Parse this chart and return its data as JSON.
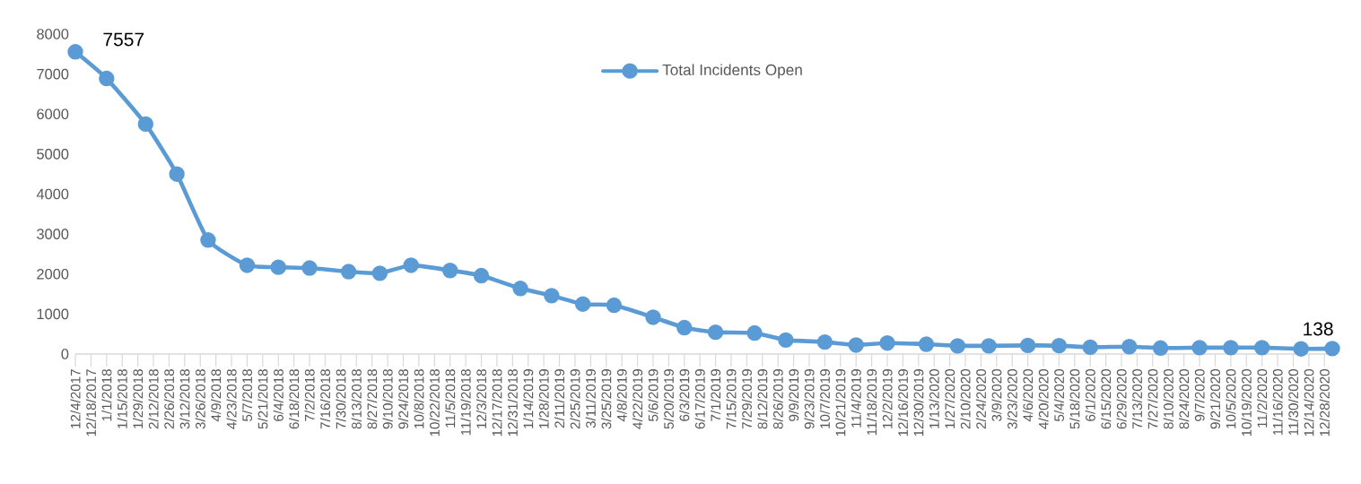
{
  "chart_data": {
    "type": "line",
    "x": [
      "2017-12-04",
      "2018-01-01",
      "2018-02-05",
      "2018-03-05",
      "2018-04-02",
      "2018-05-07",
      "2018-06-04",
      "2018-07-02",
      "2018-08-06",
      "2018-09-03",
      "2018-10-01",
      "2018-11-05",
      "2018-12-03",
      "2019-01-07",
      "2019-02-04",
      "2019-03-04",
      "2019-04-01",
      "2019-05-06",
      "2019-06-03",
      "2019-07-01",
      "2019-08-05",
      "2019-09-02",
      "2019-10-07",
      "2019-11-04",
      "2019-12-02",
      "2020-01-06",
      "2020-02-03",
      "2020-03-02",
      "2020-04-06",
      "2020-05-04",
      "2020-06-01",
      "2020-07-06",
      "2020-08-03",
      "2020-09-07",
      "2020-10-05",
      "2020-11-02",
      "2020-12-07",
      "2021-01-04"
    ],
    "series": [
      {
        "name": "Total Incidents Open",
        "color": "#5b9bd5",
        "values": [
          7557,
          6890,
          5750,
          4500,
          2850,
          2220,
          2170,
          2150,
          2060,
          2020,
          2220,
          2090,
          1960,
          1640,
          1460,
          1250,
          1220,
          920,
          660,
          545,
          525,
          350,
          300,
          225,
          275,
          245,
          205,
          205,
          215,
          210,
          170,
          185,
          150,
          160,
          160,
          160,
          130,
          138
        ],
        "value_labels": [
          "7557",
          null,
          null,
          null,
          null,
          null,
          null,
          null,
          null,
          null,
          null,
          null,
          null,
          null,
          null,
          null,
          null,
          null,
          null,
          null,
          null,
          null,
          null,
          null,
          null,
          null,
          null,
          null,
          null,
          null,
          null,
          null,
          null,
          null,
          null,
          null,
          null,
          "138"
        ]
      }
    ],
    "xlim": [
      "2017-12-04",
      "2021-01-04"
    ],
    "xticks": [
      {
        "value": "2017-12-04",
        "label": "12/4/2017"
      },
      {
        "value": "2017-12-18",
        "label": "12/18/2017"
      },
      {
        "value": "2018-01-01",
        "label": "1/1/2018"
      },
      {
        "value": "2018-01-15",
        "label": "1/15/2018"
      },
      {
        "value": "2018-01-29",
        "label": "1/29/2018"
      },
      {
        "value": "2018-02-12",
        "label": "2/12/2018"
      },
      {
        "value": "2018-02-26",
        "label": "2/26/2018"
      },
      {
        "value": "2018-03-12",
        "label": "3/12/2018"
      },
      {
        "value": "2018-03-26",
        "label": "3/26/2018"
      },
      {
        "value": "2018-04-09",
        "label": "4/9/2018"
      },
      {
        "value": "2018-04-23",
        "label": "4/23/2018"
      },
      {
        "value": "2018-05-07",
        "label": "5/7/2018"
      },
      {
        "value": "2018-05-21",
        "label": "5/21/2018"
      },
      {
        "value": "2018-06-04",
        "label": "6/4/2018"
      },
      {
        "value": "2018-06-18",
        "label": "6/18/2018"
      },
      {
        "value": "2018-07-02",
        "label": "7/2/2018"
      },
      {
        "value": "2018-07-16",
        "label": "7/16/2018"
      },
      {
        "value": "2018-07-30",
        "label": "7/30/2018"
      },
      {
        "value": "2018-08-13",
        "label": "8/13/2018"
      },
      {
        "value": "2018-08-27",
        "label": "8/27/2018"
      },
      {
        "value": "2018-09-10",
        "label": "9/10/2018"
      },
      {
        "value": "2018-09-24",
        "label": "9/24/2018"
      },
      {
        "value": "2018-10-08",
        "label": "10/8/2018"
      },
      {
        "value": "2018-10-22",
        "label": "10/22/2018"
      },
      {
        "value": "2018-11-05",
        "label": "11/5/2018"
      },
      {
        "value": "2018-11-19",
        "label": "11/19/2018"
      },
      {
        "value": "2018-12-03",
        "label": "12/3/2018"
      },
      {
        "value": "2018-12-17",
        "label": "12/17/2018"
      },
      {
        "value": "2018-12-31",
        "label": "12/31/2018"
      },
      {
        "value": "2019-01-14",
        "label": "1/14/2019"
      },
      {
        "value": "2019-01-28",
        "label": "1/28/2019"
      },
      {
        "value": "2019-02-11",
        "label": "2/11/2019"
      },
      {
        "value": "2019-02-25",
        "label": "2/25/2019"
      },
      {
        "value": "2019-03-11",
        "label": "3/11/2019"
      },
      {
        "value": "2019-03-25",
        "label": "3/25/2019"
      },
      {
        "value": "2019-04-08",
        "label": "4/8/2019"
      },
      {
        "value": "2019-04-22",
        "label": "4/22/2019"
      },
      {
        "value": "2019-05-06",
        "label": "5/6/2019"
      },
      {
        "value": "2019-05-20",
        "label": "5/20/2019"
      },
      {
        "value": "2019-06-03",
        "label": "6/3/2019"
      },
      {
        "value": "2019-06-17",
        "label": "6/17/2019"
      },
      {
        "value": "2019-07-01",
        "label": "7/1/2019"
      },
      {
        "value": "2019-07-15",
        "label": "7/15/2019"
      },
      {
        "value": "2019-07-29",
        "label": "7/29/2019"
      },
      {
        "value": "2019-08-12",
        "label": "8/12/2019"
      },
      {
        "value": "2019-08-26",
        "label": "8/26/2019"
      },
      {
        "value": "2019-09-09",
        "label": "9/9/2019"
      },
      {
        "value": "2019-09-23",
        "label": "9/23/2019"
      },
      {
        "value": "2019-10-07",
        "label": "10/7/2019"
      },
      {
        "value": "2019-10-21",
        "label": "10/21/2019"
      },
      {
        "value": "2019-11-04",
        "label": "11/4/2019"
      },
      {
        "value": "2019-11-18",
        "label": "11/18/2019"
      },
      {
        "value": "2019-12-02",
        "label": "12/2/2019"
      },
      {
        "value": "2019-12-16",
        "label": "12/16/2019"
      },
      {
        "value": "2019-12-30",
        "label": "12/30/2019"
      },
      {
        "value": "2020-01-13",
        "label": "1/13/2020"
      },
      {
        "value": "2020-01-27",
        "label": "1/27/2020"
      },
      {
        "value": "2020-02-10",
        "label": "2/10/2020"
      },
      {
        "value": "2020-02-24",
        "label": "2/24/2020"
      },
      {
        "value": "2020-03-09",
        "label": "3/9/2020"
      },
      {
        "value": "2020-03-23",
        "label": "3/23/2020"
      },
      {
        "value": "2020-04-06",
        "label": "4/6/2020"
      },
      {
        "value": "2020-04-20",
        "label": "4/20/2020"
      },
      {
        "value": "2020-05-04",
        "label": "5/4/2020"
      },
      {
        "value": "2020-05-18",
        "label": "5/18/2020"
      },
      {
        "value": "2020-06-01",
        "label": "6/1/2020"
      },
      {
        "value": "2020-06-15",
        "label": "6/15/2020"
      },
      {
        "value": "2020-06-29",
        "label": "6/29/2020"
      },
      {
        "value": "2020-07-13",
        "label": "7/13/2020"
      },
      {
        "value": "2020-07-27",
        "label": "7/27/2020"
      },
      {
        "value": "2020-08-10",
        "label": "8/10/2020"
      },
      {
        "value": "2020-08-24",
        "label": "8/24/2020"
      },
      {
        "value": "2020-09-07",
        "label": "9/7/2020"
      },
      {
        "value": "2020-09-21",
        "label": "9/21/2020"
      },
      {
        "value": "2020-10-05",
        "label": "10/5/2020"
      },
      {
        "value": "2020-10-19",
        "label": "10/19/2020"
      },
      {
        "value": "2020-11-02",
        "label": "11/2/2020"
      },
      {
        "value": "2020-11-16",
        "label": "11/16/2020"
      },
      {
        "value": "2020-11-30",
        "label": "11/30/2020"
      },
      {
        "value": "2020-12-14",
        "label": "12/14/2020"
      },
      {
        "value": "2020-12-28",
        "label": "12/28/2020"
      }
    ],
    "ylim": [
      0,
      8000
    ],
    "yticks": [
      0,
      1000,
      2000,
      3000,
      4000,
      5000,
      6000,
      7000,
      8000
    ],
    "marker": "circle",
    "line_style": "solid",
    "legend": "top",
    "grid": false
  }
}
